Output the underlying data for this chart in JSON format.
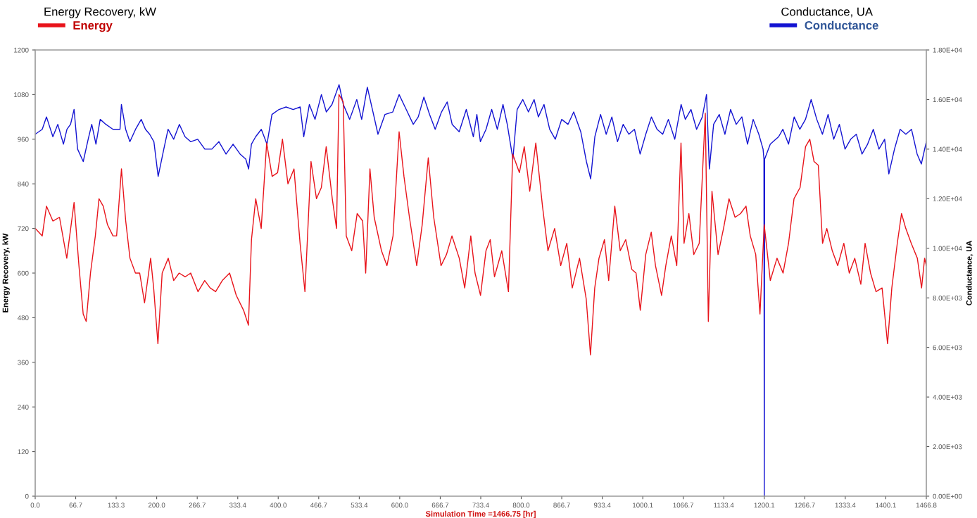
{
  "chart_data": {
    "type": "line",
    "xlabel": "Simulation Time =1466.75 [hr]",
    "ylabel": "Energy Recovery, kW",
    "y2label": "Conductance, UA",
    "annotations": [
      "Energy Recovery, kW",
      "Conductance, UA"
    ],
    "xlim": [
      0,
      1466.8
    ],
    "xticks": [
      {
        "value": 0,
        "label": "0.0"
      },
      66.7,
      133.3,
      {
        "value": 200,
        "label": "200.0"
      },
      266.7,
      333.4,
      {
        "value": 400,
        "label": "400.0"
      },
      466.7,
      533.4,
      {
        "value": 600,
        "label": "600.0"
      },
      666.7,
      733.4,
      {
        "value": 800,
        "label": "800.0"
      },
      866.7,
      933.4,
      1000.1,
      1066.7,
      1133.4,
      1200.1,
      1266.7,
      1333.4,
      1400.1,
      1466.8
    ],
    "ylim": [
      0,
      1200
    ],
    "yticks": [
      0,
      120,
      240,
      360,
      480,
      600,
      720,
      840,
      960,
      1080,
      1200
    ],
    "y2lim": [
      0,
      18000
    ],
    "y2ticks": [
      {
        "value": 0,
        "label": "0.00E+00"
      },
      {
        "value": 2000,
        "label": "2.00E+03"
      },
      {
        "value": 4000,
        "label": "4.00E+03"
      },
      {
        "value": 6000,
        "label": "6.00E+03"
      },
      {
        "value": 8000,
        "label": "8.00E+03"
      },
      {
        "value": 10000,
        "label": "1.00E+04"
      },
      {
        "value": 12000,
        "label": "1.20E+04"
      },
      {
        "value": 14000,
        "label": "1.40E+04"
      },
      {
        "value": 16000,
        "label": "1.60E+04"
      },
      {
        "value": 18000,
        "label": "1.80E+04"
      }
    ],
    "grid": false,
    "legend": "top",
    "series": [
      {
        "name": "Energy",
        "color": "#e8141b",
        "axis": "y",
        "x": [
          0,
          11.6,
          18.6,
          29.1,
          40,
          52,
          64,
          72,
          79,
          84,
          91,
          99,
          105,
          112,
          119,
          128,
          134,
          142,
          149,
          156,
          165,
          172,
          180,
          190,
          195,
          202,
          209,
          219,
          228,
          237,
          247,
          256,
          268,
          279,
          288,
          297,
          308,
          320,
          331,
          343,
          351,
          356,
          363,
          372,
          381,
          390,
          399,
          407,
          416,
          426,
          436,
          444,
          454,
          463,
          471,
          479,
          489,
          496,
          500,
          507,
          512,
          521,
          530,
          539,
          544,
          551,
          558,
          570,
          579,
          589,
          599,
          607,
          616,
          628,
          637,
          647,
          656,
          668,
          677,
          686,
          698,
          707,
          717,
          724,
          733,
          742,
          749,
          756,
          768,
          779,
          786,
          797,
          805,
          814,
          824,
          835,
          844,
          855,
          865,
          875,
          884,
          896,
          907,
          914,
          921,
          928,
          937,
          944,
          954,
          963,
          972,
          982,
          989,
          996,
          1005,
          1014,
          1021,
          1031,
          1038,
          1047,
          1056,
          1063,
          1068,
          1076,
          1084,
          1093,
          1103,
          1108,
          1114,
          1124,
          1133,
          1142,
          1152,
          1161,
          1170,
          1177,
          1186,
          1193,
          1200,
          1210,
          1221,
          1231,
          1240,
          1249,
          1259,
          1268,
          1275,
          1282,
          1289,
          1296,
          1303,
          1312,
          1321,
          1331,
          1340,
          1349,
          1359,
          1366,
          1375,
          1384,
          1394,
          1403,
          1410,
          1419,
          1426,
          1433,
          1442,
          1452,
          1459,
          1464,
          1466.8
        ],
        "values": [
          720,
          700,
          780,
          740,
          750,
          640,
          790,
          620,
          490,
          470,
          600,
          700,
          800,
          780,
          730,
          700,
          700,
          880,
          740,
          640,
          600,
          600,
          520,
          640,
          560,
          410,
          600,
          640,
          580,
          600,
          590,
          600,
          550,
          580,
          560,
          550,
          580,
          600,
          540,
          500,
          460,
          690,
          800,
          720,
          950,
          860,
          870,
          960,
          840,
          880,
          680,
          550,
          900,
          800,
          830,
          940,
          800,
          720,
          1080,
          1060,
          700,
          660,
          760,
          740,
          600,
          880,
          750,
          660,
          620,
          700,
          980,
          860,
          750,
          620,
          730,
          910,
          750,
          620,
          650,
          700,
          640,
          560,
          700,
          600,
          540,
          660,
          690,
          590,
          660,
          550,
          920,
          870,
          940,
          820,
          950,
          780,
          660,
          720,
          620,
          680,
          560,
          640,
          530,
          380,
          560,
          640,
          690,
          580,
          780,
          660,
          690,
          610,
          600,
          500,
          650,
          710,
          620,
          540,
          620,
          700,
          620,
          950,
          680,
          760,
          650,
          680,
          1030,
          470,
          820,
          650,
          720,
          800,
          750,
          760,
          780,
          700,
          650,
          490,
          730,
          580,
          640,
          600,
          680,
          800,
          830,
          940,
          960,
          900,
          890,
          680,
          720,
          660,
          620,
          680,
          600,
          640,
          570,
          680,
          600,
          550,
          560,
          410,
          560,
          680,
          760,
          720,
          680,
          640,
          560,
          640,
          620
        ]
      },
      {
        "name": "Conductance",
        "color": "#1414d2",
        "axis": "y2",
        "x": [
          0,
          11.6,
          18.6,
          29.1,
          37.2,
          46.5,
          52.3,
          58.2,
          64.0,
          69.8,
          79.1,
          87.2,
          93.1,
          100.0,
          107.0,
          116.3,
          128.0,
          139.6,
          141.9,
          148.9,
          155.9,
          165.2,
          174.5,
          181.5,
          188.4,
          195.4,
          202.4,
          211.7,
          218.7,
          228.0,
          237.3,
          246.6,
          255.9,
          267.5,
          279.2,
          290.8,
          302.4,
          314.1,
          325.7,
          337.3,
          346.6,
          351.3,
          355.9,
          362.9,
          372.2,
          381.5,
          389.7,
          401.3,
          412.9,
          424.6,
          436.2,
          442.0,
          451.3,
          460.6,
          471.1,
          479.2,
          488.5,
          500.2,
          507.2,
          517.6,
          529.3,
          537.4,
          546.7,
          556.0,
          564.2,
          575.8,
          588.6,
          599.0,
          610.7,
          622.3,
          630.5,
          639.8,
          649.1,
          658.4,
          668.8,
          678.2,
          686.3,
          697.9,
          709.6,
          721.2,
          727.0,
          732.8,
          742.1,
          751.4,
          760.7,
          770.0,
          777.0,
          786.3,
          793.3,
          802.6,
          811.9,
          821.2,
          828.2,
          837.5,
          846.8,
          856.1,
          866.6,
          877.0,
          886.4,
          898.0,
          907.3,
          914.3,
          921.2,
          930.6,
          939.9,
          949.2,
          958.5,
          967.8,
          977.1,
          986.4,
          995.7,
          1005.0,
          1014.3,
          1023.6,
          1032.9,
          1042.2,
          1052.7,
          1063.2,
          1070.1,
          1079.4,
          1088.7,
          1098.1,
          1105.0,
          1109.7,
          1116.7,
          1126.0,
          1135.3,
          1144.6,
          1153.9,
          1163.2,
          1172.5,
          1181.8,
          1191.1,
          1198.1,
          1199.5,
          1200.1,
          1200.7,
          1210.0,
          1223.7,
          1230.7,
          1240.0,
          1249.3,
          1258.6,
          1267.9,
          1277.2,
          1286.5,
          1295.8,
          1305.1,
          1314.4,
          1323.7,
          1333.0,
          1342.3,
          1351.6,
          1360.9,
          1370.2,
          1379.5,
          1388.8,
          1398.2,
          1405.1,
          1414.4,
          1423.7,
          1433.1,
          1442.4,
          1451.7,
          1458.6,
          1466.8
        ],
        "values": [
          14600,
          14800,
          15300,
          14500,
          15000,
          14200,
          14800,
          15000,
          15600,
          14000,
          13500,
          14400,
          15000,
          14200,
          15200,
          15000,
          14800,
          14800,
          15800,
          14800,
          14300,
          14800,
          15200,
          14800,
          14600,
          14300,
          12900,
          14000,
          14800,
          14400,
          15000,
          14500,
          14300,
          14400,
          14000,
          14000,
          14300,
          13800,
          14200,
          13800,
          13600,
          13200,
          14200,
          14500,
          14800,
          14200,
          15400,
          15600,
          15700,
          15600,
          15700,
          14500,
          15800,
          15200,
          16200,
          15500,
          15800,
          16600,
          15800,
          15200,
          16000,
          15200,
          16500,
          15500,
          14600,
          15400,
          15500,
          16200,
          15600,
          15000,
          15300,
          16100,
          15400,
          14800,
          15500,
          15900,
          15000,
          14700,
          15600,
          14500,
          15400,
          14300,
          14800,
          15600,
          14800,
          15800,
          15000,
          13600,
          15600,
          16000,
          15500,
          16000,
          15300,
          15800,
          14800,
          14400,
          15200,
          15000,
          15500,
          14700,
          13500,
          12800,
          14500,
          15400,
          14600,
          15300,
          14300,
          15000,
          14600,
          14800,
          13800,
          14600,
          15300,
          14800,
          14600,
          15200,
          14400,
          15800,
          15200,
          15600,
          14800,
          15300,
          16200,
          13200,
          15000,
          15400,
          14600,
          15600,
          15000,
          15300,
          14200,
          15200,
          14600,
          14000,
          13600,
          0,
          13600,
          14200,
          14500,
          14800,
          14200,
          15300,
          14800,
          15200,
          16000,
          15200,
          14600,
          15400,
          14400,
          15000,
          14000,
          14400,
          14600,
          13800,
          14200,
          14800,
          14000,
          14400,
          13000,
          14000,
          14800,
          14600,
          14800,
          13800,
          13400,
          14300
        ]
      }
    ]
  }
}
